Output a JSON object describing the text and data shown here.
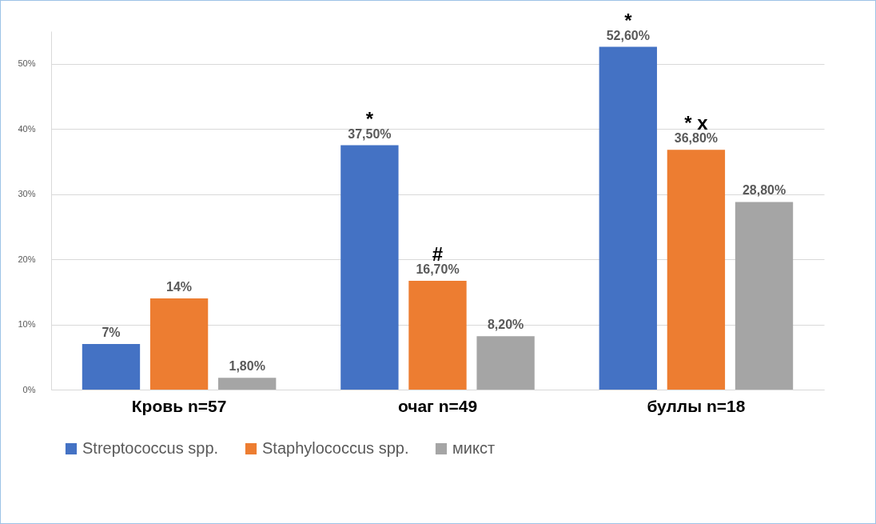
{
  "chart_data": {
    "type": "bar",
    "categories": [
      "Кровь n=57",
      "очаг  n=49",
      "буллы n=18"
    ],
    "series": [
      {
        "name": "Streptococcus spp.",
        "color": "#4472c4",
        "values": [
          7,
          37.5,
          52.6
        ],
        "value_labels": [
          "7%",
          "37,50%",
          "52,60%"
        ]
      },
      {
        "name": "Staphylococcus spp.",
        "color": "#ed7d31",
        "values": [
          14,
          16.7,
          36.8
        ],
        "value_labels": [
          "14%",
          "16,70%",
          "36,80%"
        ]
      },
      {
        "name": "микст",
        "color": "#a5a5a5",
        "values": [
          1.8,
          8.2,
          28.8
        ],
        "value_labels": [
          "1,80%",
          "8,20%",
          "28,80%"
        ]
      }
    ],
    "ylim": [
      0,
      55
    ],
    "yticks": [
      {
        "value": 0,
        "label": "0%"
      },
      {
        "value": 10,
        "label": "10%"
      },
      {
        "value": 20,
        "label": "20%"
      },
      {
        "value": 30,
        "label": "30%"
      },
      {
        "value": 40,
        "label": "40%"
      },
      {
        "value": 50,
        "label": "50%"
      }
    ],
    "grid": "y",
    "legend": "bottom",
    "annotations": [
      "*",
      {
        "text": "#",
        "x": "очаг  n=49",
        "y": 16.7
      },
      "*",
      {
        "text": "* x",
        "x": "буллы n=18",
        "y": 36.8
      }
    ]
  }
}
